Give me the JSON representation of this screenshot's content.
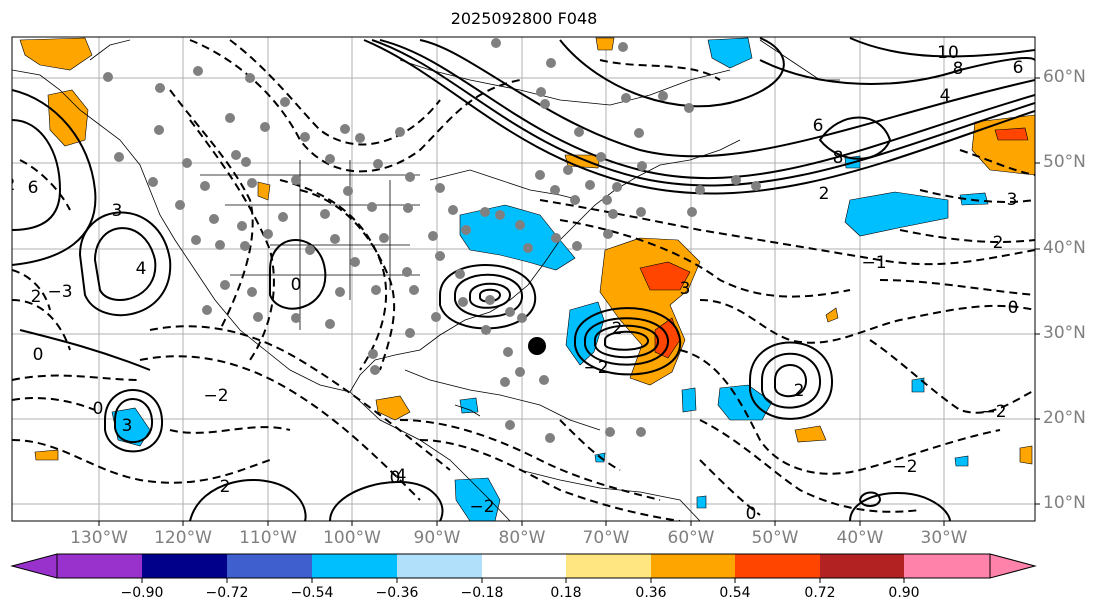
{
  "title": "2025092800 F048",
  "lat_labels": [
    "60°N",
    "50°N",
    "40°N",
    "30°N",
    "20°N",
    "10°N"
  ],
  "lon_labels": [
    "130°W",
    "120°W",
    "110°W",
    "100°W",
    "90°W",
    "80°W",
    "70°W",
    "60°W",
    "50°W",
    "40°W",
    "30°W"
  ],
  "colorbar": {
    "colors": [
      "#9932cc",
      "#00008b",
      "#3f5fcf",
      "#00bfff",
      "#b0e0fa",
      "#ffffff",
      "#ffe680",
      "#ffa500",
      "#ff4500",
      "#b22222",
      "#ff82ab"
    ],
    "ticks": [
      "−0.90",
      "−0.72",
      "−0.54",
      "−0.36",
      "−0.18",
      "0.18",
      "0.36",
      "0.54",
      "0.72",
      "0.90"
    ]
  },
  "contour_labels": [
    "10",
    "8",
    "6",
    "4",
    "6",
    "8",
    "2",
    "3",
    "2",
    "0",
    "−1",
    "2",
    "6",
    "4",
    "3",
    "−3",
    "0",
    "2",
    "0",
    "2",
    "−2",
    "0",
    "−2",
    "3",
    "−2",
    "2",
    "4",
    "2",
    "−2",
    "0",
    "−2",
    "3",
    "0"
  ]
}
